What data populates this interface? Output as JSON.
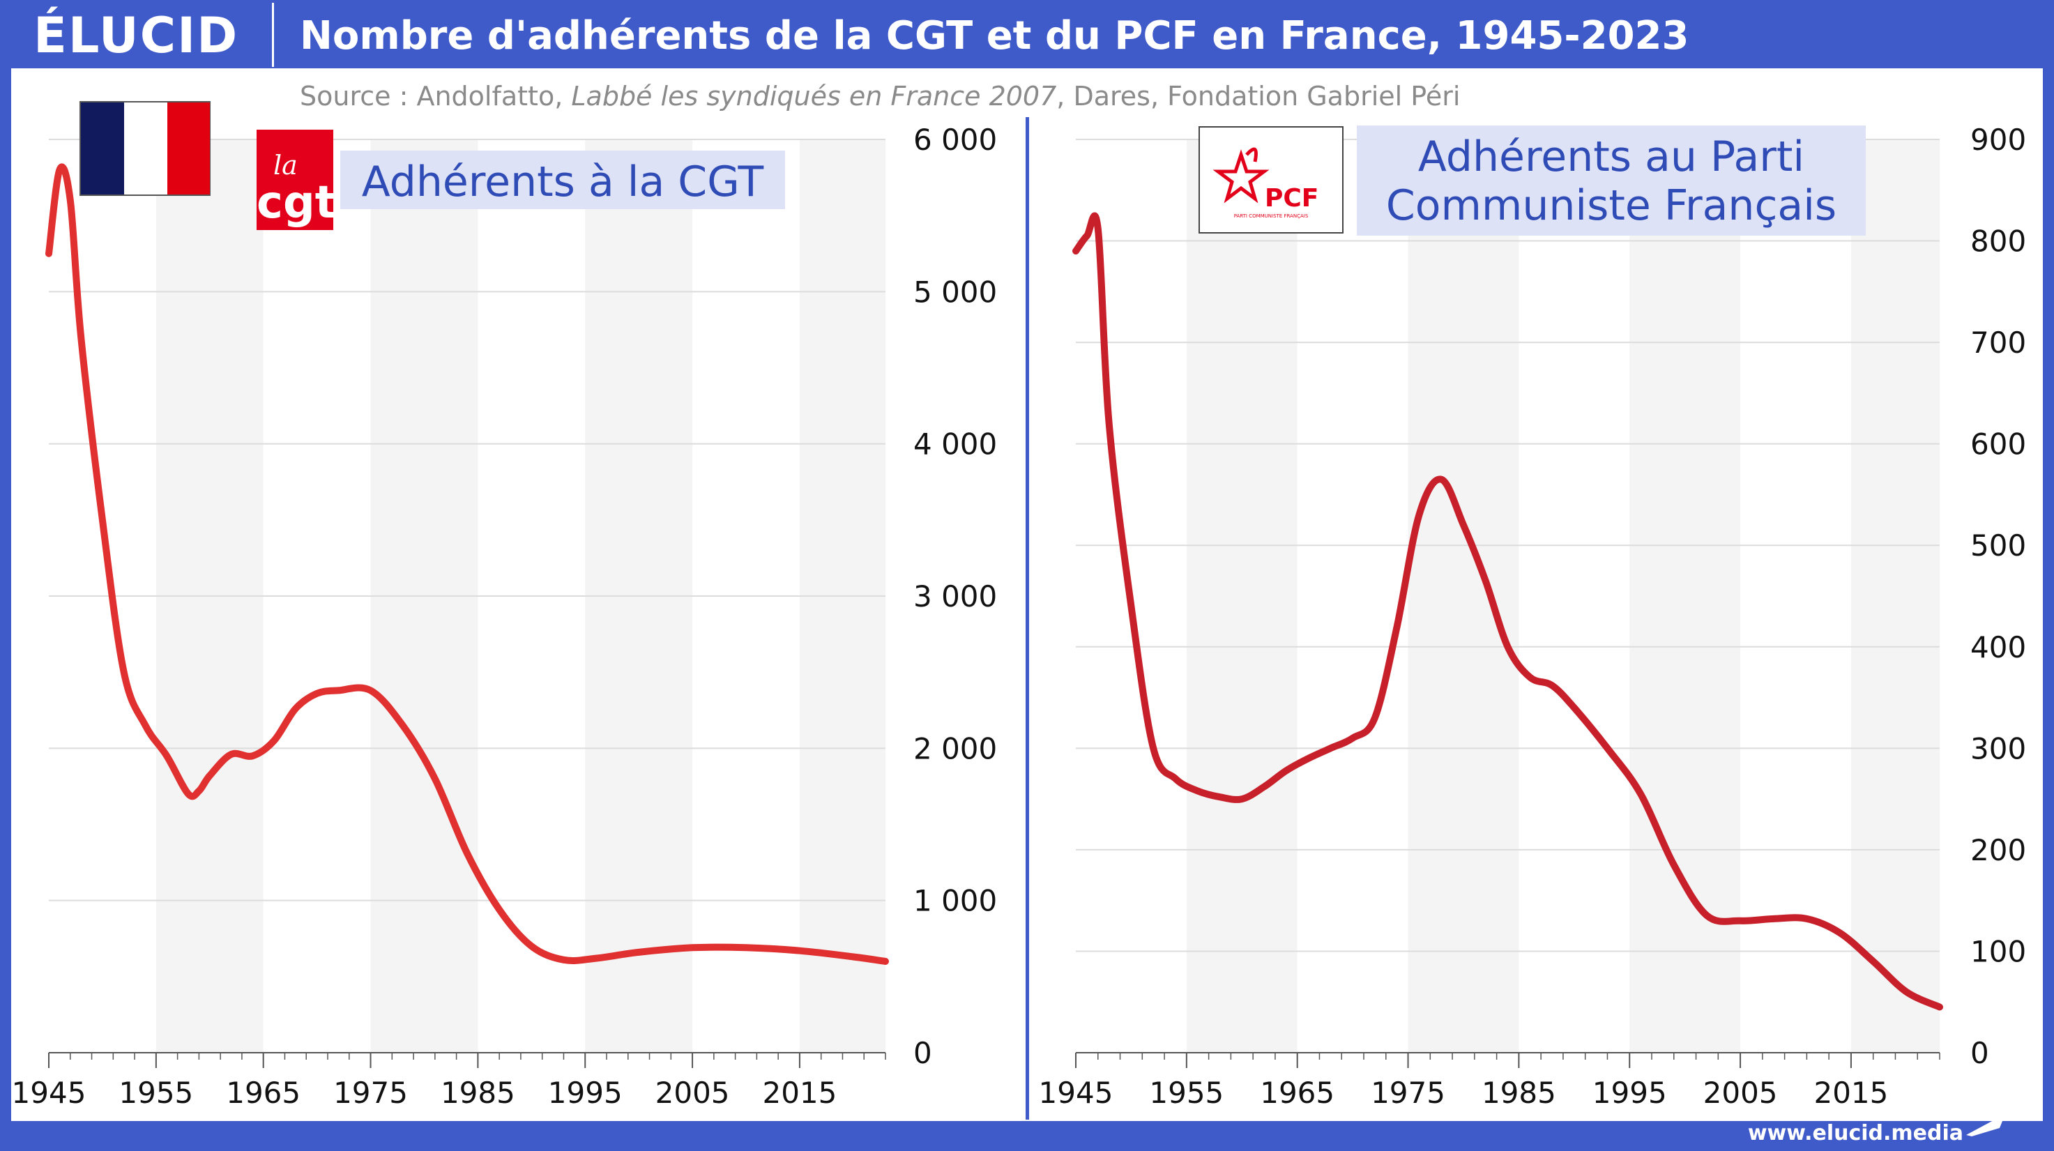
{
  "header": {
    "logo": "ÉLUCID",
    "title": "Nombre d'adhérents de la CGT et du PCF en France, 1945-2023"
  },
  "source": {
    "prefix": "Source : Andolfatto, ",
    "italic": "Labbé les syndiqués en France 2007",
    "suffix": ", Dares, Fondation Gabriel Péri"
  },
  "footer": {
    "site": "www.elucid.media"
  },
  "colors": {
    "brand": "#3f5ac9",
    "line_cgt": "#e03030",
    "line_pcf": "#c8202a",
    "title_bg": "#dde2f7",
    "title_text": "#2f4bb5"
  },
  "icons": {
    "left_panel": [
      "france-flag-icon",
      "cgt-logo"
    ],
    "right_panel": [
      "pcf-logo"
    ]
  },
  "logos": {
    "cgt": {
      "top": "la",
      "bottom": "cgt"
    },
    "pcf": {
      "main": "PCF",
      "sub": "PARTI COMMUNISTE FRANÇAIS"
    }
  },
  "chart_data": [
    {
      "type": "line",
      "title": "Adhérents à la CGT",
      "xlabel": "",
      "ylabel": "",
      "xlim": [
        1945,
        2023
      ],
      "ylim": [
        0,
        6000
      ],
      "x_ticks": [
        "1945",
        "1955",
        "1965",
        "1975",
        "1985",
        "1995",
        "2005",
        "2015"
      ],
      "y_ticks": [
        "0",
        "1 000",
        "2 000",
        "3 000",
        "4 000",
        "5 000",
        "6 000"
      ],
      "grid": true,
      "series": [
        {
          "x": [
            1945,
            1946,
            1947,
            1948,
            1950,
            1952,
            1954,
            1956,
            1958,
            1959,
            1960,
            1962,
            1964,
            1966,
            1968,
            1970,
            1972,
            1975,
            1978,
            1981,
            1984,
            1987,
            1990,
            1993,
            1996,
            2000,
            2005,
            2010,
            2015,
            2020,
            2023
          ],
          "y": [
            5250,
            5800,
            5600,
            4700,
            3500,
            2500,
            2150,
            1950,
            1700,
            1720,
            1820,
            1960,
            1950,
            2050,
            2260,
            2360,
            2380,
            2380,
            2150,
            1800,
            1310,
            940,
            700,
            610,
            620,
            660,
            690,
            690,
            670,
            630,
            600
          ]
        }
      ]
    },
    {
      "type": "line",
      "title": "Adhérents au Parti Communiste Français",
      "xlabel": "",
      "ylabel": "",
      "xlim": [
        1945,
        2023
      ],
      "ylim": [
        0,
        900
      ],
      "x_ticks": [
        "1945",
        "1955",
        "1965",
        "1975",
        "1985",
        "1995",
        "2005",
        "2015"
      ],
      "y_ticks": [
        "0",
        "100",
        "200",
        "300",
        "400",
        "500",
        "600",
        "700",
        "800",
        "900"
      ],
      "grid": true,
      "series": [
        {
          "x": [
            1945,
            1946,
            1947,
            1948,
            1950,
            1952,
            1954,
            1956,
            1958,
            1960,
            1962,
            1964,
            1966,
            1968,
            1970,
            1972,
            1974,
            1976,
            1978,
            1980,
            1982,
            1984,
            1986,
            1988,
            1990,
            1993,
            1996,
            1999,
            2002,
            2005,
            2008,
            2011,
            2014,
            2017,
            2020,
            2023
          ],
          "y": [
            790,
            805,
            812,
            620,
            440,
            300,
            270,
            258,
            252,
            250,
            262,
            278,
            290,
            300,
            310,
            330,
            420,
            530,
            565,
            520,
            465,
            400,
            370,
            362,
            340,
            300,
            255,
            185,
            135,
            130,
            132,
            132,
            118,
            90,
            60,
            45
          ]
        }
      ]
    }
  ]
}
